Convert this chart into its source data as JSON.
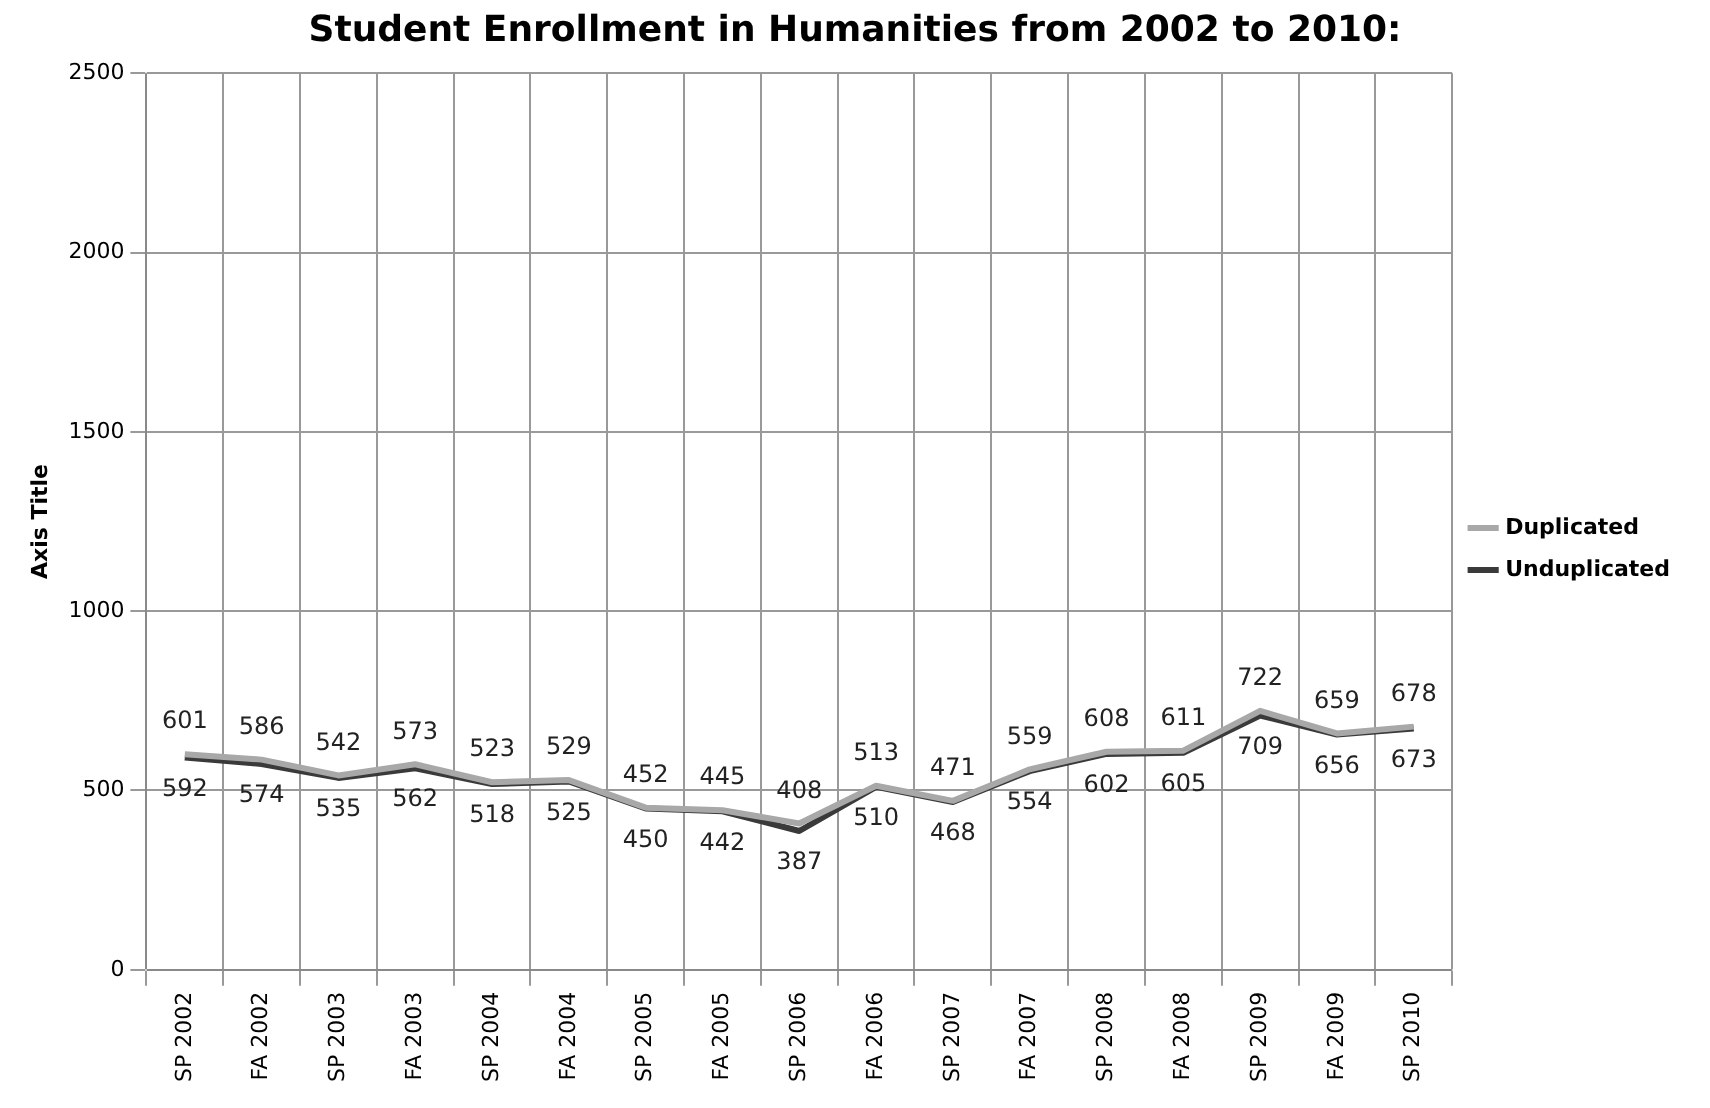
{
  "chart_data": {
    "type": "line",
    "title": "Student Enrollment in Humanities from 2002 to 2010:",
    "ylabel": "Axis Title",
    "categories": [
      "SP 2002",
      "FA 2002",
      "SP 2003",
      "FA 2003",
      "SP 2004",
      "FA 2004",
      "SP 2005",
      "FA 2005",
      "SP 2006",
      "FA 2006",
      "SP 2007",
      "FA 2007",
      "SP 2008",
      "FA 2008",
      "SP 2009",
      "FA 2009",
      "SP 2010"
    ],
    "series": [
      {
        "name": "Duplicated",
        "color": "#a8a8a8",
        "values": [
          601,
          586,
          542,
          573,
          523,
          529,
          452,
          445,
          408,
          513,
          471,
          559,
          608,
          611,
          722,
          659,
          678
        ]
      },
      {
        "name": "Unduplicated",
        "color": "#3a3a3a",
        "values": [
          592,
          574,
          535,
          562,
          518,
          525,
          450,
          442,
          387,
          510,
          468,
          554,
          602,
          605,
          709,
          656,
          673
        ]
      }
    ],
    "ylim": [
      0,
      2500
    ],
    "yticks": [
      0,
      500,
      1000,
      1500,
      2000,
      2500
    ],
    "grid": true,
    "legend": "right",
    "marker": "none",
    "line_style": "solid",
    "data_labels": true
  }
}
